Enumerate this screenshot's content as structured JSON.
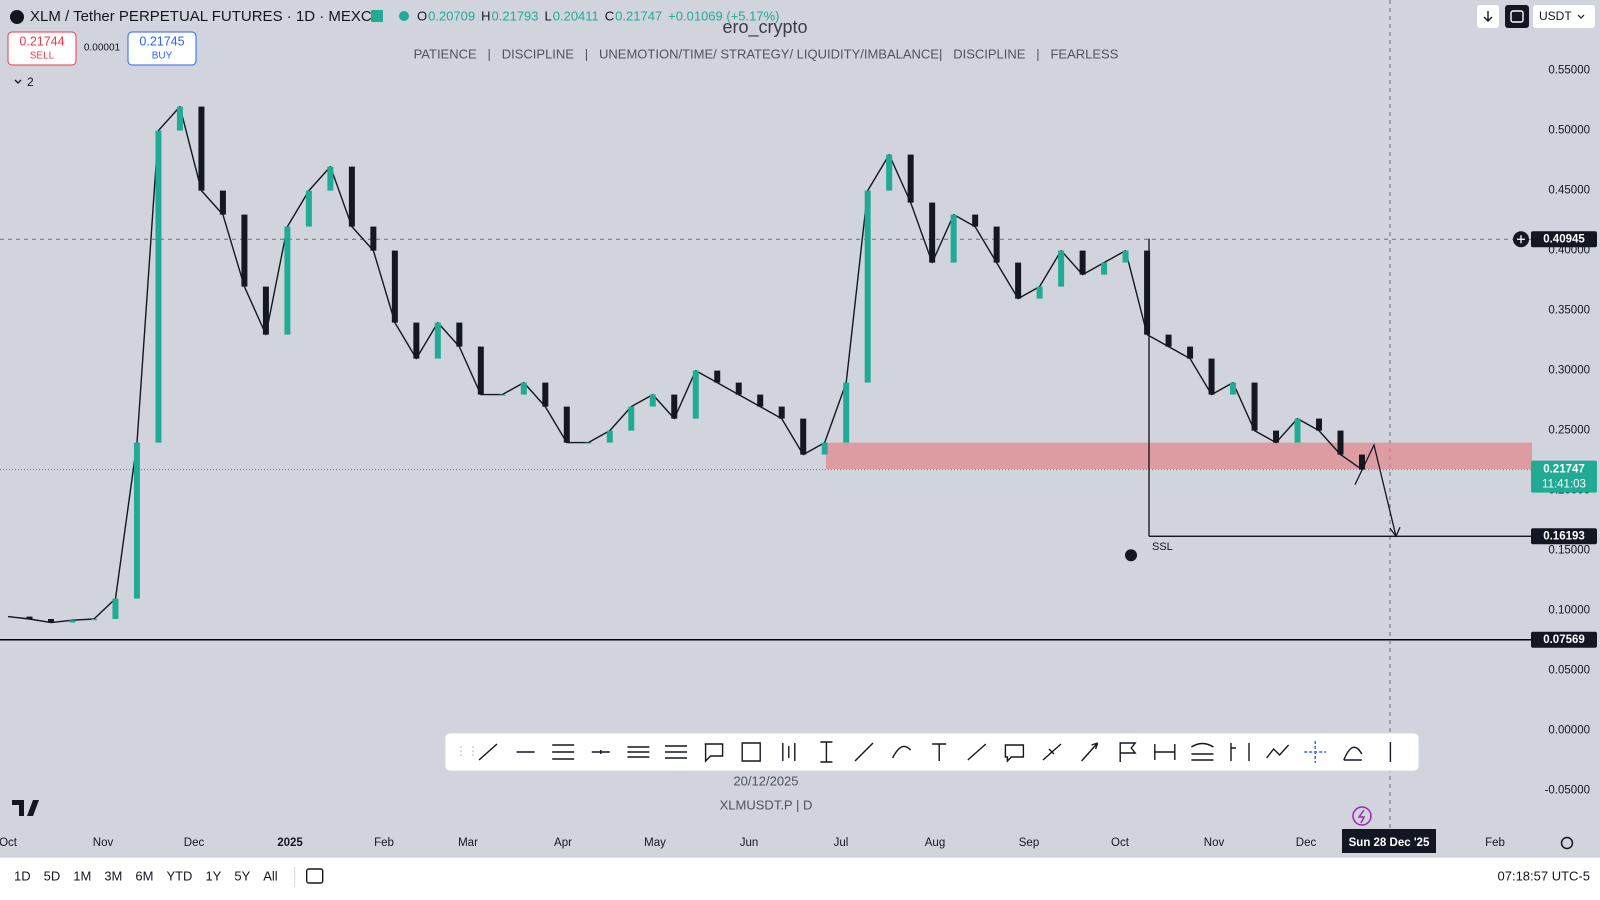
{
  "header": {
    "symbol": "XLM / Tether PERPETUAL FUTURES · 1D · MEXC",
    "ohlc": [
      {
        "key": "O",
        "value": "0.20709"
      },
      {
        "key": "H",
        "value": "0.21793"
      },
      {
        "key": "L",
        "value": "0.20411"
      },
      {
        "key": "C",
        "value": "0.21747"
      }
    ],
    "change": "+0.01069 (+5.17%)"
  },
  "trade": {
    "sell_price": "0.21744",
    "sell": "SELL",
    "spread": "0.00001",
    "buy_price": "0.21745",
    "buy": "BUY"
  },
  "indicators_toggle": "2",
  "watermark": {
    "title": "ero_crypto",
    "subtitle": "PATIENCE   |   DISCIPLINE   |   UNEMOTION/TIME/ STRATEGY/ LIQUIDITY/IMBALANCE|   DISCIPLINE   |   FEARLESS"
  },
  "top_right": {
    "currency": "USDT"
  },
  "price_axis": {
    "ticks": [
      "0.55000",
      "0.50000",
      "0.45000",
      "0.40000",
      "0.35000",
      "0.30000",
      "0.25000",
      "0.20000",
      "0.15000",
      "0.10000",
      "0.05000",
      "0.00000",
      "-0.05000"
    ]
  },
  "price_labels": [
    {
      "price": "0.40945"
    },
    {
      "price": "0.21747",
      "countdown": "11:41:03"
    },
    {
      "price": "0.16193"
    },
    {
      "price": "0.07569"
    }
  ],
  "annotations": {
    "ssl": "SSL",
    "date": "20/12/2025",
    "symbol_interval": "XLMUSDT.P | D"
  },
  "time_axis": {
    "labels": [
      "Oct",
      "Nov",
      "Dec",
      "2025",
      "Feb",
      "Mar",
      "Apr",
      "May",
      "Jun",
      "Jul",
      "Aug",
      "Sep",
      "Oct",
      "Nov",
      "Dec",
      "Feb"
    ],
    "crosshair": "Sun 28 Dec '25"
  },
  "price_path": {
    "values": [
      0.095,
      0.093,
      0.09,
      0.092,
      0.093,
      0.11,
      0.24,
      0.5,
      0.52,
      0.45,
      0.43,
      0.37,
      0.33,
      0.42,
      0.45,
      0.47,
      0.42,
      0.4,
      0.34,
      0.31,
      0.34,
      0.32,
      0.28,
      0.28,
      0.29,
      0.27,
      0.24,
      0.24,
      0.25,
      0.27,
      0.28,
      0.26,
      0.3,
      0.29,
      0.28,
      0.27,
      0.26,
      0.23,
      0.24,
      0.29,
      0.45,
      0.48,
      0.44,
      0.39,
      0.43,
      0.42,
      0.39,
      0.36,
      0.37,
      0.4,
      0.38,
      0.39,
      0.4,
      0.33,
      0.32,
      0.31,
      0.28,
      0.29,
      0.25,
      0.24,
      0.26,
      0.25,
      0.23,
      0.2175
    ]
  },
  "bottom_bar": {
    "ranges": [
      "1D",
      "5D",
      "1M",
      "3M",
      "6M",
      "YTD",
      "1Y",
      "5Y",
      "All"
    ],
    "clock": "07:18:57 UTC-5"
  }
}
